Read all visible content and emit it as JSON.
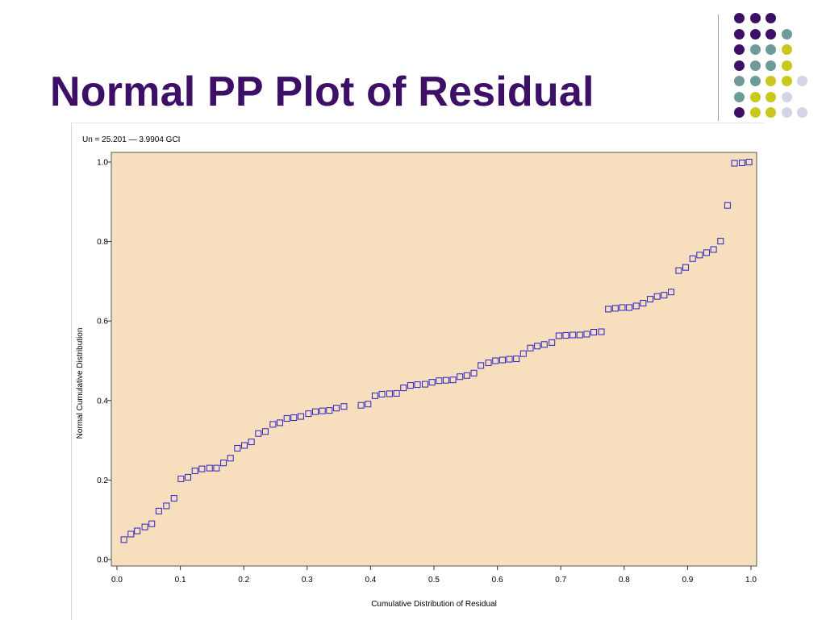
{
  "slide": {
    "title": "Normal PP Plot of Residual",
    "title_color": "#3d0f66"
  },
  "decor": {
    "dot_colors": {
      "a": "#3d0f66",
      "b": "#6f9a9a",
      "c": "#c8c81e",
      "d": "#d4d4e6"
    },
    "dot_rows": [
      [
        "a",
        "a",
        "a"
      ],
      [
        "a",
        "a",
        "a",
        "b"
      ],
      [
        "a",
        "b",
        "b",
        "c"
      ],
      [
        "a",
        "b",
        "b",
        "c"
      ],
      [
        "b",
        "b",
        "c",
        "c",
        "d"
      ],
      [
        "b",
        "c",
        "c",
        "d"
      ],
      [
        "a",
        "c",
        "c",
        "d",
        "d"
      ],
      [
        "d",
        "d"
      ]
    ]
  },
  "chart_data": {
    "type": "scatter",
    "title": "",
    "annotation": "Un  =  25.201  — 3.9904 GCI",
    "xlabel": "Cumulative Distribution of Residual",
    "ylabel": "Normal Cumulative Distribution",
    "xlim": [
      0.0,
      1.0
    ],
    "ylim": [
      0.0,
      1.0
    ],
    "x_ticks": [
      "0.0",
      "0.1",
      "0.2",
      "0.3",
      "0.4",
      "0.5",
      "0.6",
      "0.7",
      "0.8",
      "0.9",
      "1.0"
    ],
    "y_ticks": [
      "0.0",
      "0.2",
      "0.4",
      "0.6",
      "0.8",
      "1.0"
    ],
    "plot_background": "#f7dfbd",
    "marker_color": "#2a22c8",
    "marker": "square",
    "grid": false,
    "legend": "none",
    "x": [
      0.011,
      0.022,
      0.032,
      0.044,
      0.055,
      0.066,
      0.078,
      0.09,
      0.101,
      0.112,
      0.123,
      0.134,
      0.146,
      0.157,
      0.168,
      0.179,
      0.19,
      0.201,
      0.212,
      0.223,
      0.234,
      0.246,
      0.257,
      0.268,
      0.279,
      0.29,
      0.302,
      0.313,
      0.324,
      0.335,
      0.346,
      0.358,
      0.385,
      0.396,
      0.407,
      0.418,
      0.43,
      0.441,
      0.452,
      0.463,
      0.474,
      0.486,
      0.497,
      0.508,
      0.519,
      0.53,
      0.541,
      0.552,
      0.563,
      0.574,
      0.586,
      0.597,
      0.608,
      0.619,
      0.63,
      0.641,
      0.652,
      0.663,
      0.674,
      0.686,
      0.697,
      0.708,
      0.719,
      0.73,
      0.741,
      0.752,
      0.764,
      0.775,
      0.786,
      0.797,
      0.808,
      0.819,
      0.83,
      0.841,
      0.852,
      0.863,
      0.874,
      0.886,
      0.897,
      0.908,
      0.919,
      0.93,
      0.941,
      0.952,
      0.963,
      0.974,
      0.986,
      0.997
    ],
    "y": [
      0.05,
      0.064,
      0.072,
      0.082,
      0.09,
      0.122,
      0.135,
      0.154,
      0.203,
      0.207,
      0.223,
      0.228,
      0.23,
      0.23,
      0.243,
      0.255,
      0.28,
      0.287,
      0.296,
      0.317,
      0.322,
      0.34,
      0.344,
      0.355,
      0.357,
      0.36,
      0.367,
      0.372,
      0.374,
      0.375,
      0.381,
      0.385,
      0.388,
      0.391,
      0.412,
      0.416,
      0.417,
      0.418,
      0.432,
      0.438,
      0.44,
      0.441,
      0.446,
      0.45,
      0.451,
      0.452,
      0.46,
      0.463,
      0.469,
      0.488,
      0.495,
      0.5,
      0.502,
      0.504,
      0.505,
      0.518,
      0.532,
      0.537,
      0.541,
      0.546,
      0.563,
      0.564,
      0.565,
      0.565,
      0.567,
      0.572,
      0.573,
      0.63,
      0.632,
      0.634,
      0.634,
      0.638,
      0.645,
      0.655,
      0.662,
      0.665,
      0.673,
      0.727,
      0.735,
      0.757,
      0.766,
      0.772,
      0.78,
      0.801,
      0.891,
      0.997,
      0.998,
      1.0
    ]
  }
}
